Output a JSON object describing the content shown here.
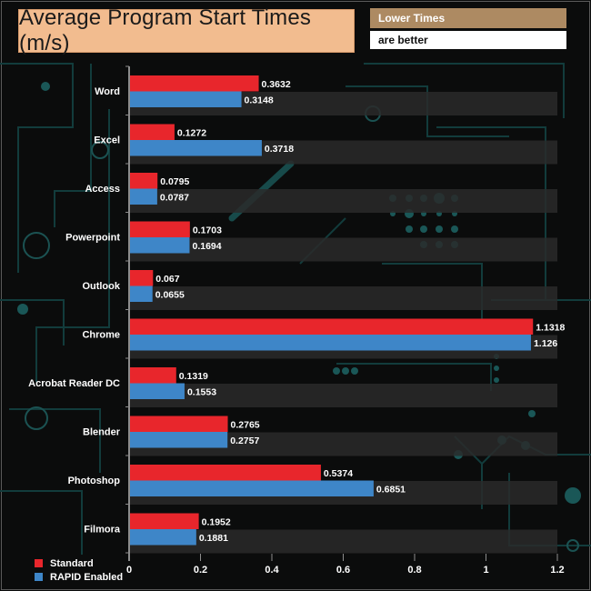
{
  "notes": {
    "line1": "Lower Times",
    "line2": "are better"
  },
  "colors": {
    "standard": "#e8262c",
    "rapid": "#3e86c8",
    "band": "#2a2a2a",
    "axis": "#8c8c8c",
    "text": "#ffffff"
  },
  "chart_data": {
    "type": "bar",
    "orientation": "horizontal",
    "title": "Average Program Start Times (m/s)",
    "categories": [
      "Word",
      "Excel",
      "Access",
      "Powerpoint",
      "Outlook",
      "Chrome",
      "Acrobat Reader DC",
      "Blender",
      "Photoshop",
      "Filmora"
    ],
    "series": [
      {
        "name": "Standard",
        "values": [
          0.3632,
          0.1272,
          0.0795,
          0.1703,
          0.067,
          1.1318,
          0.1319,
          0.2765,
          0.5374,
          0.1952
        ]
      },
      {
        "name": "RAPID Enabled",
        "values": [
          0.3148,
          0.3718,
          0.0787,
          0.1694,
          0.0655,
          1.126,
          0.1553,
          0.2757,
          0.6851,
          0.1881
        ]
      }
    ],
    "value_labels": [
      [
        "0.3632",
        "0.1272",
        "0.0795",
        "0.1703",
        "0.067",
        "1.1318",
        "0.1319",
        "0.2765",
        "0.5374",
        "0.1952"
      ],
      [
        "0.3148",
        "0.3718",
        "0.0787",
        "0.1694",
        "0.0655",
        "1.126",
        "0.1553",
        "0.2757",
        "0.6851",
        "0.1881"
      ]
    ],
    "xlim": [
      0,
      1.2
    ],
    "xticks": [
      0,
      0.2,
      0.4,
      0.6,
      0.8,
      1,
      1.2
    ],
    "xtick_labels": [
      "0",
      "0.2",
      "0.4",
      "0.6",
      "0.8",
      "1",
      "1.2"
    ],
    "xlabel": "",
    "ylabel": "",
    "legend_position": "bottom-left",
    "grid": false
  }
}
